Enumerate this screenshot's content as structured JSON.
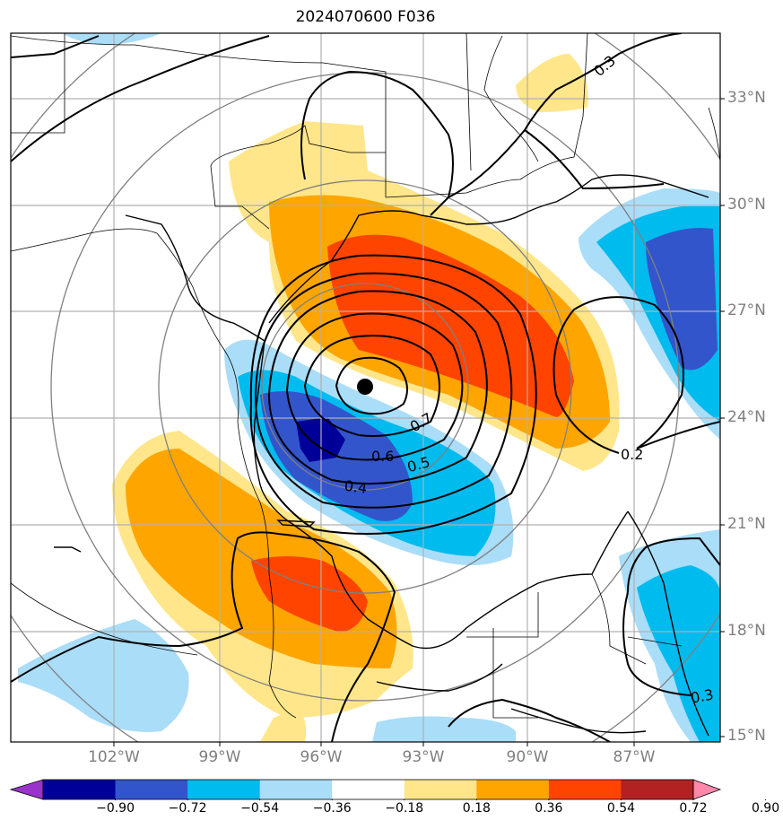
{
  "title": "2024070600 F036",
  "lat_labels": [
    "33°N",
    "30°N",
    "27°N",
    "24°N",
    "21°N",
    "18°N",
    "15°N"
  ],
  "lon_labels": [
    "102°W",
    "99°W",
    "96°W",
    "93°W",
    "90°W",
    "87°W"
  ],
  "contour_labels": [
    "0.3",
    "0.7",
    "0.6",
    "0.5",
    "0.4",
    "0.2",
    "0.3"
  ],
  "colorbar": {
    "ticks": [
      "−0.90",
      "−0.72",
      "−0.54",
      "−0.36",
      "−0.18",
      "0.18",
      "0.36",
      "0.54",
      "0.72",
      "0.90"
    ],
    "colors": [
      "#9933cc",
      "#000099",
      "#3355cc",
      "#00bbee",
      "#aaddf8",
      "#ffffff",
      "#ffe68a",
      "#ffa500",
      "#ff4400",
      "#b22222",
      "#ff88aa"
    ]
  },
  "chart_data": {
    "type": "map",
    "title": "2024070600 F036",
    "lat_range": [
      15,
      35
    ],
    "lon_range": [
      -104,
      -84
    ],
    "lat_ticks": [
      33,
      30,
      27,
      24,
      21,
      18,
      15
    ],
    "lon_ticks": [
      -102,
      -99,
      -96,
      -93,
      -90,
      -87
    ],
    "center_marker": {
      "lat": 24.9,
      "lon": -94.7
    },
    "contour_levels": [
      0.2,
      0.3,
      0.4,
      0.5,
      0.6,
      0.7
    ],
    "fill_levels": [
      -0.9,
      -0.72,
      -0.54,
      -0.36,
      -0.18,
      0.18,
      0.36,
      0.54,
      0.72,
      0.9
    ],
    "grid": true
  }
}
